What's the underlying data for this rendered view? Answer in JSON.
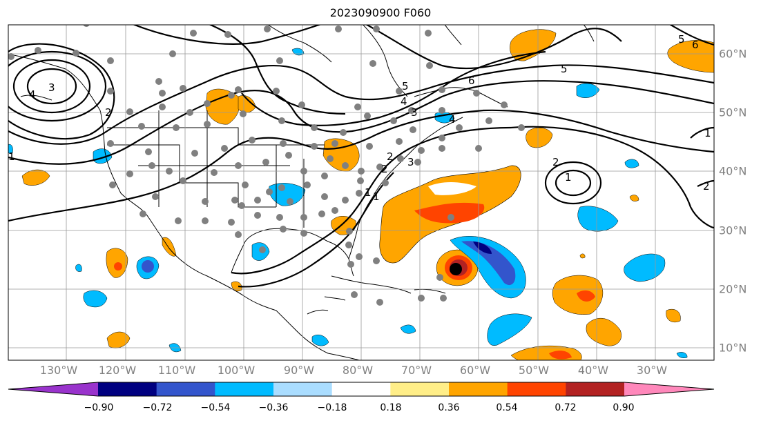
{
  "title": "2023090900 F060",
  "lon_labels": [
    "130°W",
    "120°W",
    "110°W",
    "100°W",
    "90°W",
    "80°W",
    "70°W",
    "60°W",
    "50°W",
    "40°W",
    "30°W"
  ],
  "lat_labels": [
    "60°N",
    "50°N",
    "40°N",
    "30°N",
    "20°N",
    "10°N"
  ],
  "contour_labels": [
    "4",
    "3",
    "2",
    "1",
    "5",
    "4",
    "3",
    "2",
    "1",
    "6",
    "5",
    "4",
    "3",
    "2",
    "1",
    "1",
    "2",
    "1",
    "2",
    "5",
    "6"
  ],
  "colorbar": {
    "tick_labels": [
      "−0.90",
      "−0.72",
      "−0.54",
      "−0.36",
      "−0.18",
      "0.18",
      "0.36",
      "0.54",
      "0.72",
      "0.90"
    ],
    "colors": [
      "#9933cc",
      "#000080",
      "#3355cc",
      "#00bbff",
      "#aaddff",
      "#ffffff",
      "#ffee88",
      "#ffa500",
      "#ff4400",
      "#b22222",
      "#ff88bb"
    ]
  },
  "legend_colors": {
    "land_outline": "#000000",
    "grid": "#999999",
    "station_marker": "#808080",
    "storm_center": "#000000"
  }
}
